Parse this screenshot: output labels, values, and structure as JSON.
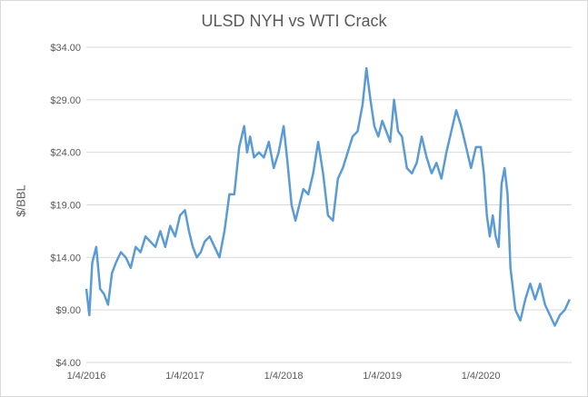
{
  "chart_data": {
    "type": "line",
    "title": "ULSD NYH vs WTI Crack",
    "xlabel": "",
    "ylabel": "$/BBL",
    "ylim": [
      4,
      34
    ],
    "yticks": [
      "$4.00",
      "$9.00",
      "$14.00",
      "$19.00",
      "$24.00",
      "$29.00",
      "$34.00"
    ],
    "xticks": [
      "1/4/2016",
      "1/4/2017",
      "1/4/2018",
      "1/4/2019",
      "1/4/2020"
    ],
    "grid": true,
    "color": "#5b9bd5",
    "series": [
      {
        "x": [
          2016.0,
          2016.03,
          2016.06,
          2016.1,
          2016.14,
          2016.18,
          2016.22,
          2016.26,
          2016.3,
          2016.35,
          2016.4,
          2016.45,
          2016.5,
          2016.55,
          2016.6,
          2016.65,
          2016.7,
          2016.75,
          2016.8,
          2016.85,
          2016.9,
          2016.95,
          2017.0,
          2017.04,
          2017.08,
          2017.12,
          2017.16,
          2017.2,
          2017.25,
          2017.3,
          2017.35,
          2017.4,
          2017.45,
          2017.5,
          2017.55,
          2017.6,
          2017.63,
          2017.66,
          2017.7,
          2017.75,
          2017.8,
          2017.85,
          2017.9,
          2017.95,
          2018.0,
          2018.04,
          2018.08,
          2018.12,
          2018.16,
          2018.2,
          2018.25,
          2018.3,
          2018.35,
          2018.4,
          2018.45,
          2018.5,
          2018.55,
          2018.6,
          2018.65,
          2018.7,
          2018.75,
          2018.8,
          2018.84,
          2018.88,
          2018.92,
          2018.96,
          2019.0,
          2019.04,
          2019.08,
          2019.12,
          2019.16,
          2019.2,
          2019.25,
          2019.3,
          2019.35,
          2019.4,
          2019.45,
          2019.5,
          2019.55,
          2019.6,
          2019.65,
          2019.7,
          2019.75,
          2019.8,
          2019.85,
          2019.9,
          2019.95,
          2020.0,
          2020.03,
          2020.06,
          2020.09,
          2020.12,
          2020.15,
          2020.18,
          2020.21,
          2020.24,
          2020.27,
          2020.3,
          2020.35,
          2020.4,
          2020.45,
          2020.5,
          2020.55,
          2020.6,
          2020.65,
          2020.7,
          2020.75,
          2020.8,
          2020.85,
          2020.9
        ],
        "y": [
          11.0,
          8.5,
          13.5,
          15.0,
          11.0,
          10.5,
          9.5,
          12.5,
          13.5,
          14.5,
          14.0,
          13.0,
          15.0,
          14.5,
          16.0,
          15.5,
          15.0,
          16.5,
          15.0,
          17.0,
          16.0,
          18.0,
          18.5,
          16.5,
          15.0,
          14.0,
          14.5,
          15.5,
          16.0,
          15.0,
          14.0,
          16.5,
          20.0,
          20.0,
          24.5,
          26.5,
          24.0,
          25.5,
          23.5,
          24.0,
          23.5,
          25.0,
          22.5,
          24.0,
          26.5,
          23.0,
          19.0,
          17.5,
          19.0,
          20.5,
          20.0,
          22.0,
          25.0,
          22.0,
          18.0,
          17.5,
          21.5,
          22.5,
          24.0,
          25.5,
          26.0,
          28.5,
          32.0,
          29.0,
          26.5,
          25.5,
          27.0,
          26.0,
          25.0,
          29.0,
          26.0,
          25.5,
          22.5,
          22.0,
          23.0,
          25.5,
          23.5,
          22.0,
          23.0,
          21.5,
          24.0,
          26.0,
          28.0,
          26.5,
          24.5,
          22.5,
          24.5,
          24.5,
          22.0,
          18.0,
          16.0,
          18.0,
          16.0,
          15.0,
          21.0,
          22.5,
          20.0,
          13.0,
          9.0,
          8.0,
          10.0,
          11.5,
          10.0,
          11.5,
          9.5,
          8.5,
          7.5,
          8.5,
          9.0,
          10.0
        ]
      }
    ]
  }
}
